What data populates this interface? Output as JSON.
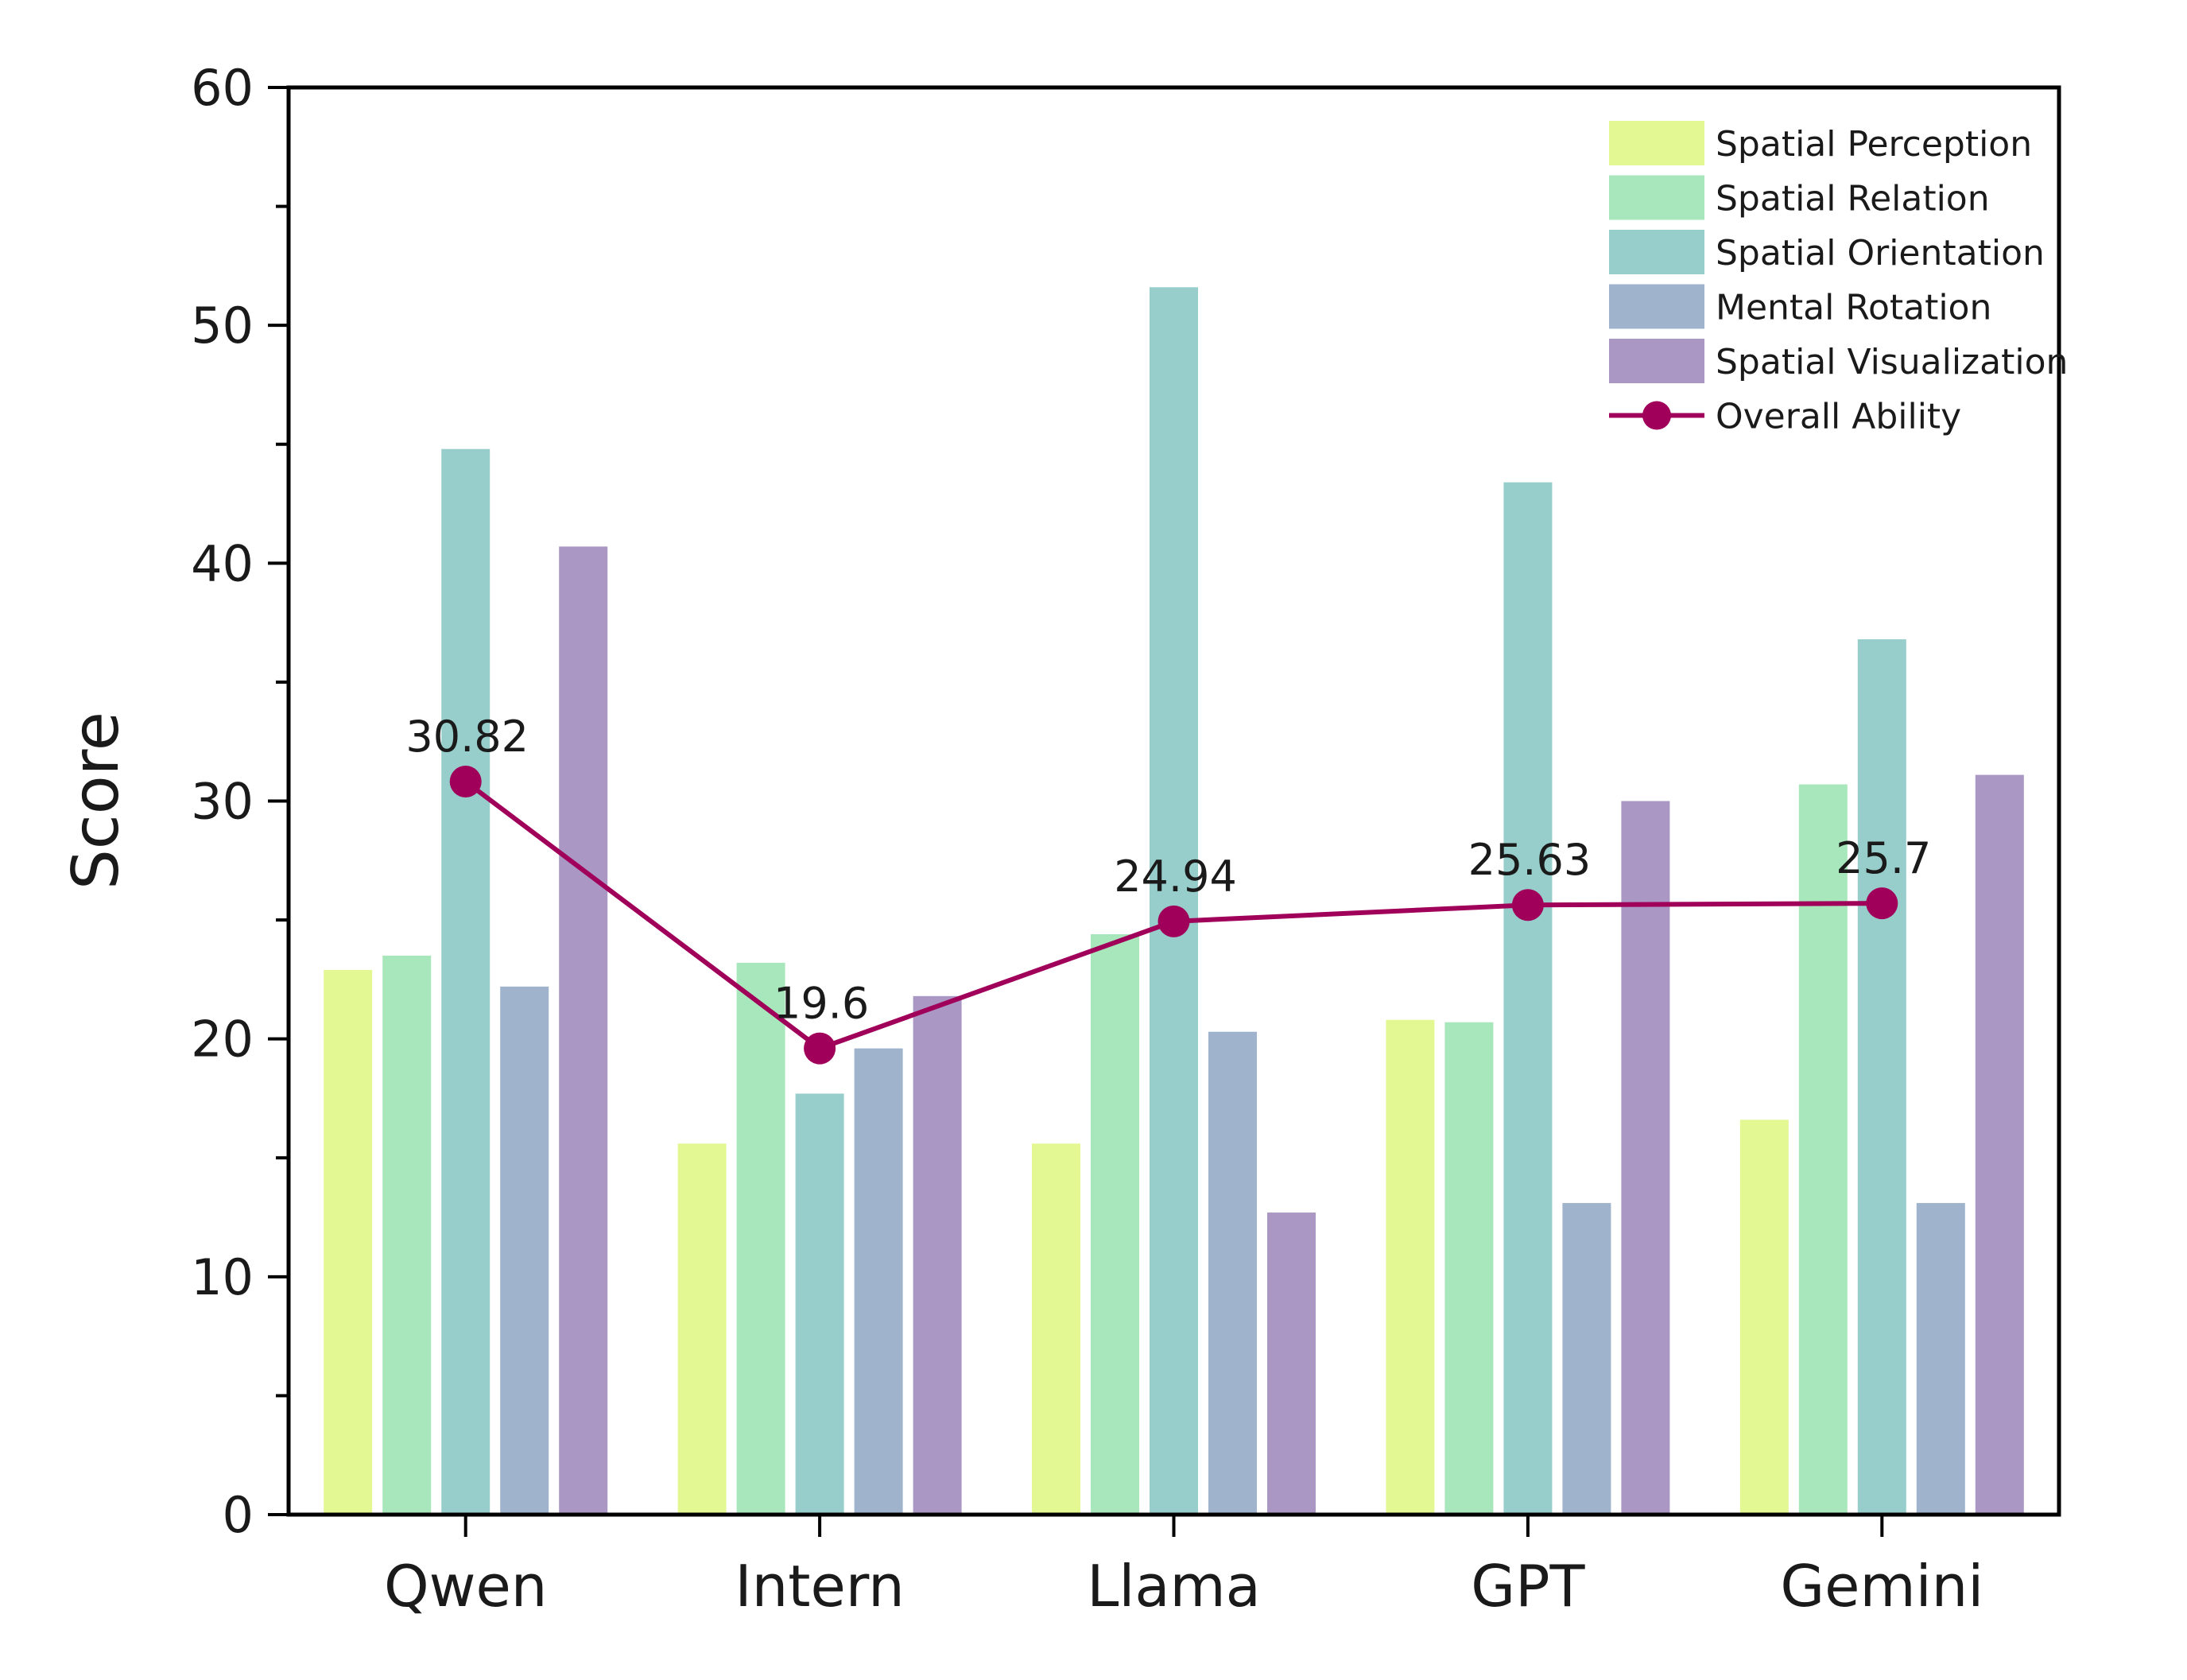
{
  "chart_data": {
    "type": "bar",
    "title": "",
    "xlabel": "",
    "ylabel": "Score",
    "ylim": [
      0,
      60
    ],
    "yticks": [
      "0",
      "10",
      "20",
      "30",
      "40",
      "50",
      "60"
    ],
    "categories": [
      "Qwen",
      "Intern",
      "Llama",
      "GPT",
      "Gemini"
    ],
    "series": [
      {
        "name": "Spatial Perception",
        "color": "#e3f793",
        "values": [
          22.9,
          15.6,
          15.6,
          20.8,
          16.6
        ]
      },
      {
        "name": "Spatial Relation",
        "color": "#a8e6bb",
        "values": [
          23.5,
          23.2,
          24.4,
          20.7,
          30.7
        ]
      },
      {
        "name": "Spatial Orientation",
        "color": "#97cecb",
        "values": [
          44.8,
          17.7,
          51.6,
          43.4,
          36.8
        ]
      },
      {
        "name": "Mental Rotation",
        "color": "#a0b3cc",
        "values": [
          22.2,
          19.6,
          20.3,
          13.1,
          13.1
        ]
      },
      {
        "name": "Spatial Visualization",
        "color": "#aa97c3",
        "values": [
          40.7,
          21.8,
          12.7,
          30.0,
          31.1
        ]
      }
    ],
    "line": {
      "name": "Overall Ability",
      "color": "#a0005a",
      "values": [
        30.82,
        19.6,
        24.94,
        25.63,
        25.7
      ],
      "labels": [
        "30.82",
        "19.6",
        "24.94",
        "25.63",
        "25.7"
      ]
    },
    "legend_position": "top-right"
  }
}
